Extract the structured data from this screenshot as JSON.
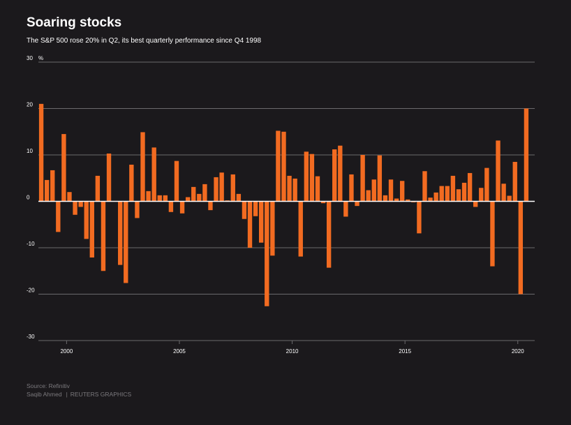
{
  "chart_data": {
    "type": "bar",
    "title": "Soaring stocks",
    "subtitle": "The S&P 500 rose 20% in Q2, its best quarterly performance since Q4 1998",
    "unit": "%",
    "ylim": [
      -30,
      30
    ],
    "y_ticks": [
      30,
      20,
      10,
      0,
      -10,
      -20,
      -30
    ],
    "x_ticks": [
      2000,
      2005,
      2010,
      2015,
      2020
    ],
    "xlim": [
      1998.75,
      2020.75
    ],
    "grid": true,
    "bar_color": "#f26b21",
    "x": [
      "1998-Q4",
      "1999-Q1",
      "1999-Q2",
      "1999-Q3",
      "1999-Q4",
      "2000-Q1",
      "2000-Q2",
      "2000-Q3",
      "2000-Q4",
      "2001-Q1",
      "2001-Q2",
      "2001-Q3",
      "2001-Q4",
      "2002-Q1",
      "2002-Q2",
      "2002-Q3",
      "2002-Q4",
      "2003-Q1",
      "2003-Q2",
      "2003-Q3",
      "2003-Q4",
      "2004-Q1",
      "2004-Q2",
      "2004-Q3",
      "2004-Q4",
      "2005-Q1",
      "2005-Q2",
      "2005-Q3",
      "2005-Q4",
      "2006-Q1",
      "2006-Q2",
      "2006-Q3",
      "2006-Q4",
      "2007-Q1",
      "2007-Q2",
      "2007-Q3",
      "2007-Q4",
      "2008-Q1",
      "2008-Q2",
      "2008-Q3",
      "2008-Q4",
      "2009-Q1",
      "2009-Q2",
      "2009-Q3",
      "2009-Q4",
      "2010-Q1",
      "2010-Q2",
      "2010-Q3",
      "2010-Q4",
      "2011-Q1",
      "2011-Q2",
      "2011-Q3",
      "2011-Q4",
      "2012-Q1",
      "2012-Q2",
      "2012-Q3",
      "2012-Q4",
      "2013-Q1",
      "2013-Q2",
      "2013-Q3",
      "2013-Q4",
      "2014-Q1",
      "2014-Q2",
      "2014-Q3",
      "2014-Q4",
      "2015-Q1",
      "2015-Q2",
      "2015-Q3",
      "2015-Q4",
      "2016-Q1",
      "2016-Q2",
      "2016-Q3",
      "2016-Q4",
      "2017-Q1",
      "2017-Q2",
      "2017-Q3",
      "2017-Q4",
      "2018-Q1",
      "2018-Q2",
      "2018-Q3",
      "2018-Q4",
      "2019-Q1",
      "2019-Q2",
      "2019-Q3",
      "2019-Q4",
      "2020-Q1",
      "2020-Q2"
    ],
    "values": [
      21.0,
      4.6,
      6.7,
      -6.6,
      14.5,
      2.0,
      -2.9,
      -1.2,
      -8.1,
      -12.1,
      5.5,
      -15.0,
      10.3,
      0.0,
      -13.7,
      -17.6,
      7.9,
      -3.6,
      14.9,
      2.2,
      11.6,
      1.3,
      1.3,
      -2.3,
      8.7,
      -2.6,
      0.9,
      3.1,
      1.6,
      3.7,
      -1.9,
      5.2,
      6.2,
      0.2,
      5.8,
      1.6,
      -3.8,
      -10.0,
      -3.2,
      -8.9,
      -22.6,
      -11.7,
      15.2,
      15.0,
      5.5,
      4.9,
      -11.9,
      10.7,
      10.2,
      5.4,
      -0.4,
      -14.3,
      11.2,
      12.0,
      -3.3,
      5.8,
      -1.0,
      10.0,
      2.4,
      4.7,
      9.9,
      1.3,
      4.7,
      0.6,
      4.4,
      0.4,
      -0.2,
      -6.9,
      6.5,
      0.8,
      1.9,
      3.3,
      3.3,
      5.5,
      2.6,
      4.0,
      6.1,
      -1.2,
      2.9,
      7.2,
      -14.0,
      13.1,
      3.8,
      1.2,
      8.5,
      -20.0,
      20.0
    ]
  },
  "footer": {
    "source": "Source: Refinitiv",
    "author": "Saqib Ahmed",
    "separator": "|",
    "publisher": "REUTERS GRAPHICS"
  }
}
